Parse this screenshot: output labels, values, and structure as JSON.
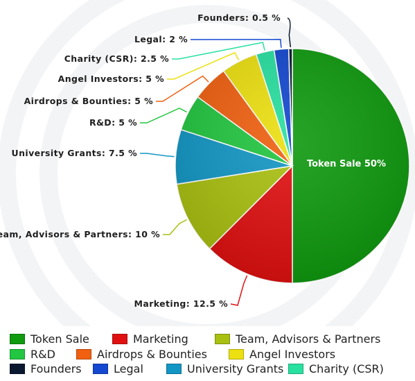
{
  "chart_data": {
    "type": "pie",
    "title": "",
    "slices": [
      {
        "label": "Token Sale",
        "value": 50,
        "color": "#0f9a0f",
        "callout": "Token Sale 50%"
      },
      {
        "label": "Marketing",
        "value": 12.5,
        "color": "#e01010",
        "callout": "Marketing: 12.5 %"
      },
      {
        "label": "Team, Advisors & Partners",
        "value": 10,
        "color": "#a9c010",
        "callout": "eam, Advisors & Partners: 10 %"
      },
      {
        "label": "University Grants",
        "value": 7.5,
        "color": "#1296c4",
        "callout": "University Grants: 7.5 %"
      },
      {
        "label": "R&D",
        "value": 5,
        "color": "#22c640",
        "callout": "R&D: 5 %"
      },
      {
        "label": "Airdrops & Bounties",
        "value": 5,
        "color": "#f06010",
        "callout": "Airdrops & Bounties: 5 %"
      },
      {
        "label": "Angel Investors",
        "value": 5,
        "color": "#ece010",
        "callout": "Angel Investors: 5 %"
      },
      {
        "label": "Charity (CSR)",
        "value": 2.5,
        "color": "#28e0a0",
        "callout": "Charity (CSR): 2.5 %"
      },
      {
        "label": "Legal",
        "value": 2,
        "color": "#1448d0",
        "callout": "Legal: 2 %"
      },
      {
        "label": "Founders",
        "value": 0.5,
        "color": "#0a1830",
        "callout": "Founders: 0.5 %"
      }
    ],
    "legend": {
      "placement": "bottom",
      "rows": [
        [
          "Token Sale",
          "Marketing",
          "Team, Advisors & Partners"
        ],
        [
          "R&D",
          "Airdrops & Bounties",
          "Angel Investors"
        ],
        [
          "Founders",
          "Legal",
          "University Grants",
          "Charity (CSR)"
        ]
      ]
    }
  }
}
